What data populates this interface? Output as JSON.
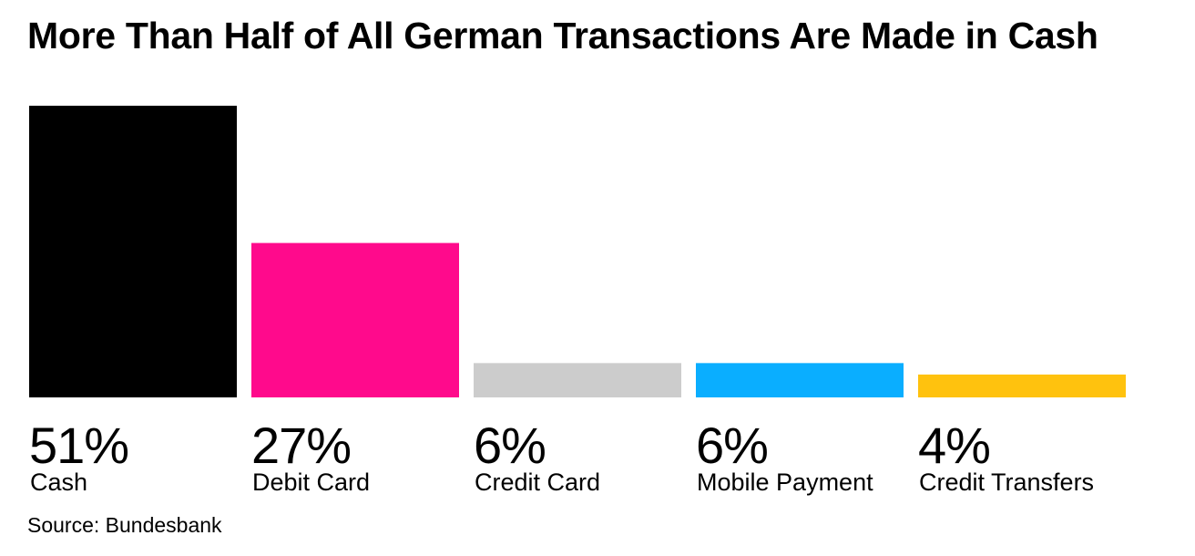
{
  "chart_data": {
    "type": "bar",
    "title": "More Than Half of All German Transactions Are Made in Cash",
    "categories": [
      "Cash",
      "Debit Card",
      "Credit Card",
      "Mobile Payment",
      "Credit Transfers"
    ],
    "values": [
      51,
      27,
      6,
      6,
      4
    ],
    "value_labels": [
      "51%",
      "27%",
      "6%",
      "6%",
      "4%"
    ],
    "colors": [
      "#000000",
      "#ff0a8c",
      "#cccccc",
      "#0aaeff",
      "#ffc20e"
    ],
    "unit": "%",
    "grid": false,
    "legend": "none",
    "source": "Source: Bundesbank"
  }
}
